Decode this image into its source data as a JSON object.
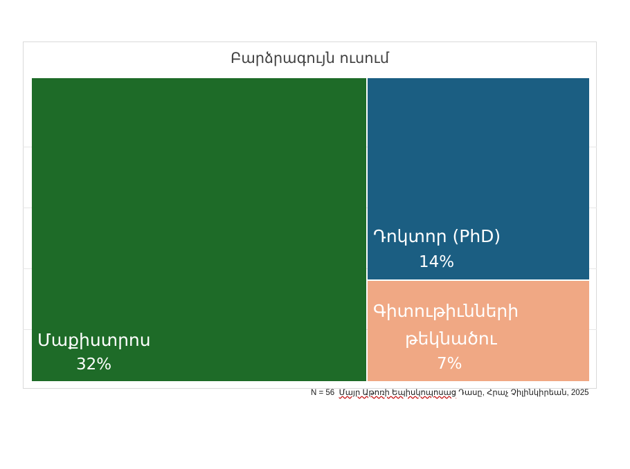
{
  "chart_data": {
    "type": "treemap",
    "title": "Բարձրագույն ուսում",
    "items": [
      {
        "label": "Մաքիստրոս",
        "value_label": "32%",
        "value": 32,
        "color": "#1e6b28"
      },
      {
        "label": "Դոկտոր (PhD)",
        "value_label": "14%",
        "value": 14,
        "color": "#1b5e82"
      },
      {
        "label": "Գիտութիւնների թեկնածու",
        "label_lines": [
          "Գիտութիւնների",
          "թեկնածու"
        ],
        "value_label": "7%",
        "value": 7,
        "color": "#f0a884"
      }
    ]
  },
  "source": {
    "n_label": "N = 56",
    "underlined_text": "Մայր Աթոռի Եպիսկոպոսաց",
    "rest_text": " Դասը, Հրաչ Չիլինկիրեան, 2025"
  }
}
